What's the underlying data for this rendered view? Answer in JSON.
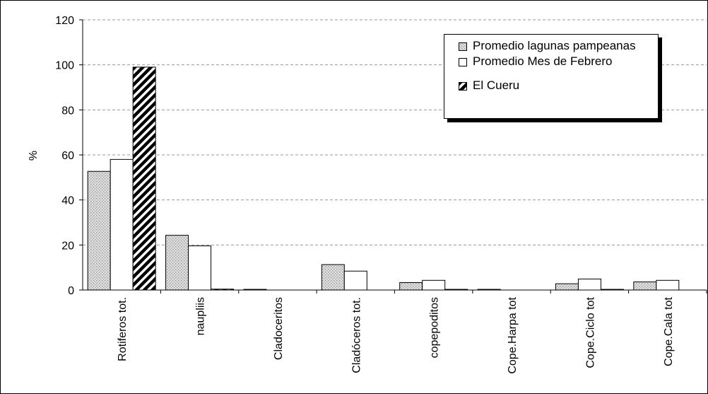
{
  "chart_data": {
    "type": "bar",
    "ylabel": "%",
    "categories": [
      "Rotiferos tot.",
      "naupliis",
      "Cladoceritos",
      "Cladóceros tot.",
      "copepoditos",
      "Cope.Harpa tot",
      "Cope.Ciclo tot",
      "Cope.Cala tot"
    ],
    "series": [
      {
        "name": "Promedio lagunas pampeanas",
        "color": "#c8c8c8",
        "pattern": "dots",
        "values": [
          52.7,
          24.3,
          0.3,
          11.3,
          3.3,
          0.3,
          2.8,
          3.6
        ]
      },
      {
        "name": "Promedio Mes de Febrero",
        "color": "#ffffff",
        "pattern": "none",
        "values": [
          58,
          19.6,
          0,
          8.4,
          4.3,
          0,
          4.9,
          4.3
        ]
      },
      {
        "name": "El Cueru",
        "color": "#000000",
        "pattern": "hatch",
        "values": [
          99,
          0.4,
          0,
          0,
          0.3,
          0,
          0.3,
          0
        ]
      }
    ],
    "ylim": [
      0,
      120
    ],
    "yticks": [
      0,
      20,
      40,
      60,
      80,
      100,
      120
    ],
    "grid": true,
    "legend": "top-right"
  }
}
